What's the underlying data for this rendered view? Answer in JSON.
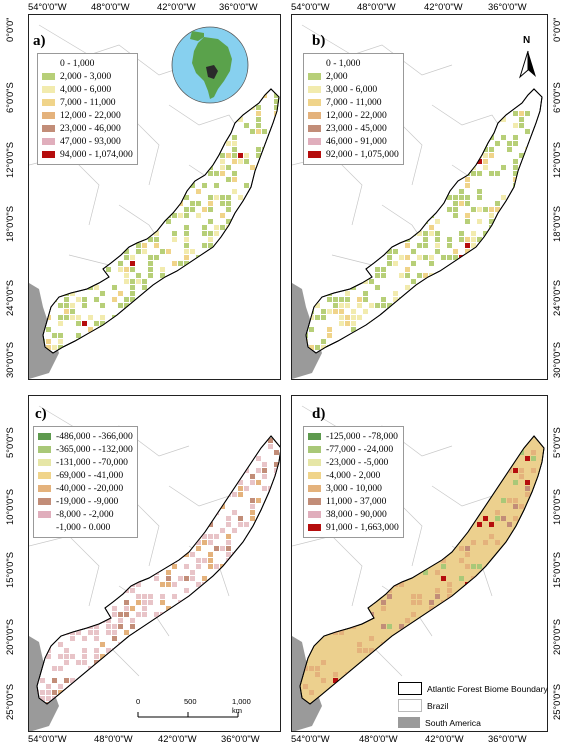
{
  "panels": {
    "a": {
      "label": "a)",
      "legend": [
        {
          "text": "0 - 1,000",
          "color": "#ffffff"
        },
        {
          "text": "2,000 - 3,000",
          "color": "#b7cf78"
        },
        {
          "text": "4,000 - 6,000",
          "color": "#f2ebae"
        },
        {
          "text": "7,000 - 11,000",
          "color": "#f0d48a"
        },
        {
          "text": "12,000 - 22,000",
          "color": "#e4b27c"
        },
        {
          "text": "23,000 - 46,000",
          "color": "#c28d78"
        },
        {
          "text": "47,000 - 93,000",
          "color": "#e0aebc"
        },
        {
          "text": "94,000 - 1,074,000",
          "color": "#b50d0d"
        }
      ]
    },
    "b": {
      "label": "b)",
      "legend": [
        {
          "text": "0 - 1,000",
          "color": "#ffffff"
        },
        {
          "text": "2,000",
          "color": "#b7cf78"
        },
        {
          "text": "3,000 - 6,000",
          "color": "#f2ebae"
        },
        {
          "text": "7,000 - 11,000",
          "color": "#f0d48a"
        },
        {
          "text": "12,000 - 22,000",
          "color": "#e4b27c"
        },
        {
          "text": "23,000 - 45,000",
          "color": "#c28d78"
        },
        {
          "text": "46,000 - 91,000",
          "color": "#e0aebc"
        },
        {
          "text": "92,000 - 1,075,000",
          "color": "#b50d0d"
        }
      ]
    },
    "c": {
      "label": "c)",
      "legend": [
        {
          "text": "-486,000 - -366,000",
          "color": "#5e9a4e"
        },
        {
          "text": "-365,000 - -132,000",
          "color": "#a9c878"
        },
        {
          "text": "-131,000 - -70,000",
          "color": "#e6e6a6"
        },
        {
          "text": "-69,000 - -41,000",
          "color": "#f0d48a"
        },
        {
          "text": "-40,000 - -20,000",
          "color": "#e4b27c"
        },
        {
          "text": "-19,000 - -9,000",
          "color": "#c28d78"
        },
        {
          "text": "-8,000 - -2,000",
          "color": "#e0aebc"
        },
        {
          "text": "-1,000 - 0.000",
          "color": "#ffffff"
        }
      ]
    },
    "d": {
      "label": "d)",
      "legend": [
        {
          "text": "-125,000 - -78,000",
          "color": "#5e9a4e"
        },
        {
          "text": "-77,000 - -24,000",
          "color": "#a9c878"
        },
        {
          "text": "-23,000 - -5,000",
          "color": "#e6e6a6"
        },
        {
          "text": "-4,000 - 2,000",
          "color": "#f0d48a"
        },
        {
          "text": "3,000 - 10,000",
          "color": "#e4b27c"
        },
        {
          "text": "11,000 - 37,000",
          "color": "#c28d78"
        },
        {
          "text": "38,000 - 90,000",
          "color": "#e0aebc"
        },
        {
          "text": "91,000 - 1,663,000",
          "color": "#b50d0d"
        }
      ]
    }
  },
  "ticks": {
    "top_lon": [
      "54°0'0\"W",
      "48°0'0\"W",
      "42°0'0\"W",
      "36°0'0\"W"
    ],
    "bottom_lon": [
      "54°0'0\"W",
      "48°0'0\"W",
      "42°0'0\"W",
      "36°0'0\"W"
    ],
    "lat_top": [
      "0°0'0\"",
      "6°0'0\"S",
      "12°0'0\"S",
      "18°0'0\"S",
      "24°0'0\"S",
      "30°0'0\"S"
    ],
    "lat_bottom": [
      "5°0'0\"S",
      "10°0'0\"S",
      "15°0'0\"S",
      "20°0'0\"S",
      "25°0'0\"S"
    ]
  },
  "north_arrow": "N",
  "scale": {
    "labels": [
      "0",
      "500",
      "1,000 km"
    ]
  },
  "general_legend": [
    {
      "text": "Atlantic Forest Biome Boundary",
      "fill": "#ffffff",
      "stroke": "#000000"
    },
    {
      "text": "Brazil",
      "fill": "#ffffff",
      "stroke": "#bbbbbb"
    },
    {
      "text": "South America",
      "fill": "#9a9a9a",
      "stroke": "#9a9a9a"
    }
  ],
  "colors": {
    "ocean_globe": "#87d0ef",
    "land_globe": "#5aa24b",
    "highlight_globe": "#2a2a2a",
    "gray_land": "#9a9a9a"
  }
}
